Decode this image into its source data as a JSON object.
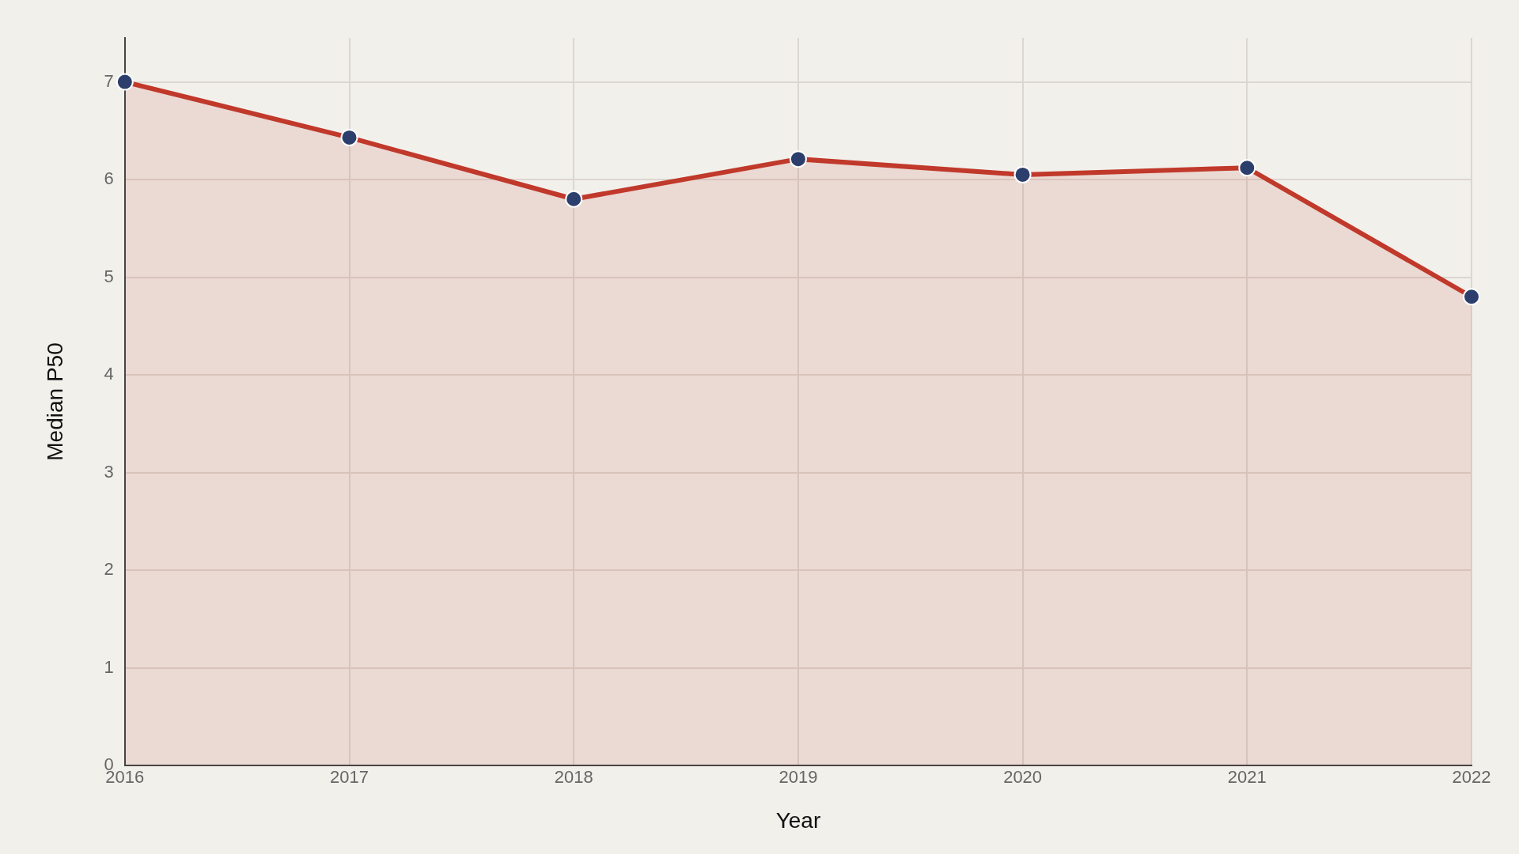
{
  "chart_data": {
    "type": "area",
    "xlabel": "Year",
    "ylabel": "Median P50",
    "x": [
      2016,
      2017,
      2018,
      2019,
      2020,
      2021,
      2022
    ],
    "series": [
      {
        "color": "#c0392b",
        "values": [
          7.0,
          6.43,
          5.8,
          6.21,
          6.05,
          6.12,
          4.8
        ]
      }
    ],
    "xlim": [
      2016,
      2022
    ],
    "xticks": [
      2016,
      2017,
      2018,
      2019,
      2020,
      2021,
      2022
    ],
    "ylim": [
      0,
      7.45
    ],
    "yticks": [
      0,
      1,
      2,
      3,
      4,
      5,
      6,
      7
    ],
    "grid": true,
    "marker": "circle",
    "line_style": "solid"
  }
}
